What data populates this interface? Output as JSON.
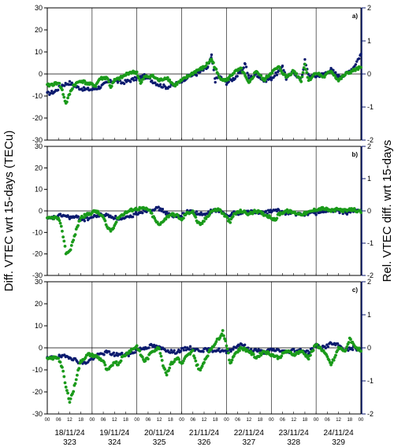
{
  "chart_data": {
    "type": "scatter",
    "ylabel_left": "Diff. VTEC wrt 15-days (TECu)",
    "ylabel_right": "Rel. VTEC diff. wrt 15-days",
    "xlim_hours": [
      0,
      168
    ],
    "ylim_left": [
      -30,
      30
    ],
    "ylim_right": [
      -2,
      2
    ],
    "yticks_left": [
      -30,
      -20,
      -10,
      0,
      10,
      20,
      30
    ],
    "yticks_right": [
      -2,
      -1,
      0,
      1,
      2
    ],
    "hour_ticks": [
      "00",
      "06",
      "12",
      "18",
      "00",
      "06",
      "12",
      "18",
      "00",
      "06",
      "12",
      "18",
      "00",
      "06",
      "12",
      "18",
      "00",
      "06",
      "12",
      "18",
      "00",
      "06",
      "12",
      "18",
      "00",
      "06",
      "12",
      "18",
      "00"
    ],
    "dates": [
      "18/11/24",
      "19/11/24",
      "20/11/24",
      "21/11/24",
      "22/11/24",
      "23/11/24",
      "24/11/24"
    ],
    "doys": [
      "323",
      "324",
      "325",
      "326",
      "327",
      "328",
      "329"
    ],
    "colors": {
      "left_series": "#0b1a6e",
      "right_series": "#1a9a1a",
      "right_axis": "#0b1a6e"
    },
    "series_style": [
      "left axis (TECu), navy",
      "right axis (relative), green"
    ],
    "panels": [
      {
        "label": "a)",
        "navy": [
          [
            0,
            -9
          ],
          [
            4,
            -8
          ],
          [
            8,
            -5
          ],
          [
            12,
            -4
          ],
          [
            16,
            -6
          ],
          [
            20,
            -7
          ],
          [
            24,
            -7
          ],
          [
            28,
            -6
          ],
          [
            32,
            -4
          ],
          [
            36,
            -3
          ],
          [
            40,
            -4
          ],
          [
            44,
            -3
          ],
          [
            48,
            -2
          ],
          [
            52,
            -1
          ],
          [
            56,
            -3
          ],
          [
            60,
            -5
          ],
          [
            64,
            -6
          ],
          [
            68,
            -5
          ],
          [
            72,
            -3
          ],
          [
            76,
            -1
          ],
          [
            80,
            0
          ],
          [
            84,
            2
          ],
          [
            86,
            3
          ],
          [
            88,
            8
          ],
          [
            90,
            -3
          ],
          [
            92,
            -1
          ],
          [
            96,
            -4
          ],
          [
            100,
            -2
          ],
          [
            104,
            1
          ],
          [
            106,
            5
          ],
          [
            108,
            -2
          ],
          [
            112,
            0
          ],
          [
            116,
            -3
          ],
          [
            120,
            -2
          ],
          [
            124,
            1
          ],
          [
            126,
            4
          ],
          [
            128,
            -2
          ],
          [
            132,
            1
          ],
          [
            136,
            -3
          ],
          [
            138,
            6
          ],
          [
            140,
            -1
          ],
          [
            144,
            -1
          ],
          [
            148,
            0
          ],
          [
            152,
            2
          ],
          [
            156,
            -1
          ],
          [
            160,
            0
          ],
          [
            164,
            3
          ],
          [
            168,
            9
          ]
        ],
        "green": [
          [
            0,
            -0.35
          ],
          [
            4,
            -0.3
          ],
          [
            6,
            -0.25
          ],
          [
            8,
            -0.5
          ],
          [
            10,
            -0.9
          ],
          [
            12,
            -0.6
          ],
          [
            14,
            -0.35
          ],
          [
            18,
            -0.2
          ],
          [
            22,
            -0.3
          ],
          [
            26,
            -0.35
          ],
          [
            28,
            -0.15
          ],
          [
            32,
            -0.1
          ],
          [
            34,
            -0.4
          ],
          [
            36,
            -0.2
          ],
          [
            40,
            -0.1
          ],
          [
            44,
            0.05
          ],
          [
            48,
            0.05
          ],
          [
            50,
            -0.3
          ],
          [
            52,
            -0.1
          ],
          [
            56,
            -0.05
          ],
          [
            60,
            -0.2
          ],
          [
            64,
            -0.1
          ],
          [
            68,
            -0.35
          ],
          [
            72,
            -0.2
          ],
          [
            76,
            -0.05
          ],
          [
            80,
            0.1
          ],
          [
            84,
            0.2
          ],
          [
            88,
            0.45
          ],
          [
            92,
            -0.1
          ],
          [
            96,
            -0.2
          ],
          [
            100,
            0.05
          ],
          [
            104,
            0.15
          ],
          [
            108,
            -0.3
          ],
          [
            112,
            0.1
          ],
          [
            116,
            -0.2
          ],
          [
            120,
            0.05
          ],
          [
            124,
            0.2
          ],
          [
            128,
            -0.1
          ],
          [
            132,
            0.1
          ],
          [
            136,
            -0.2
          ],
          [
            138,
            0.3
          ],
          [
            140,
            -0.2
          ],
          [
            144,
            0.05
          ],
          [
            148,
            -0.1
          ],
          [
            152,
            0.1
          ],
          [
            156,
            -0.2
          ],
          [
            160,
            0
          ],
          [
            164,
            0.1
          ],
          [
            168,
            0.2
          ]
        ]
      },
      {
        "label": "b)",
        "navy": [
          [
            0,
            -4
          ],
          [
            4,
            -3
          ],
          [
            8,
            -2
          ],
          [
            12,
            -3
          ],
          [
            16,
            -3
          ],
          [
            20,
            -4
          ],
          [
            24,
            -3
          ],
          [
            28,
            -2
          ],
          [
            32,
            -2
          ],
          [
            36,
            -3
          ],
          [
            40,
            -4
          ],
          [
            44,
            -3
          ],
          [
            48,
            -1
          ],
          [
            52,
            0
          ],
          [
            56,
            1
          ],
          [
            60,
            1
          ],
          [
            64,
            -1
          ],
          [
            68,
            -3
          ],
          [
            72,
            -2
          ],
          [
            76,
            0
          ],
          [
            80,
            -1
          ],
          [
            84,
            -2
          ],
          [
            88,
            0
          ],
          [
            92,
            0
          ],
          [
            96,
            -2
          ],
          [
            100,
            -1
          ],
          [
            104,
            -1
          ],
          [
            108,
            0
          ],
          [
            112,
            -1
          ],
          [
            116,
            -1
          ],
          [
            120,
            0
          ],
          [
            124,
            0
          ],
          [
            128,
            -1
          ],
          [
            132,
            -1
          ],
          [
            136,
            -2
          ],
          [
            140,
            -1
          ],
          [
            144,
            -1
          ],
          [
            148,
            0
          ],
          [
            152,
            0
          ],
          [
            156,
            0
          ],
          [
            160,
            -1
          ],
          [
            164,
            0
          ],
          [
            168,
            0
          ]
        ],
        "green": [
          [
            0,
            -0.25
          ],
          [
            4,
            -0.2
          ],
          [
            6,
            -0.25
          ],
          [
            8,
            -0.6
          ],
          [
            10,
            -1.3
          ],
          [
            12,
            -1.25
          ],
          [
            14,
            -0.9
          ],
          [
            16,
            -0.5
          ],
          [
            18,
            -0.2
          ],
          [
            22,
            -0.1
          ],
          [
            26,
            0
          ],
          [
            30,
            -0.2
          ],
          [
            32,
            -0.5
          ],
          [
            34,
            -0.6
          ],
          [
            36,
            -0.45
          ],
          [
            38,
            -0.2
          ],
          [
            42,
            -0.05
          ],
          [
            46,
            0.05
          ],
          [
            50,
            0.08
          ],
          [
            54,
            0.05
          ],
          [
            56,
            -0.1
          ],
          [
            58,
            -0.3
          ],
          [
            60,
            -0.45
          ],
          [
            62,
            -0.3
          ],
          [
            66,
            -0.1
          ],
          [
            70,
            -0.15
          ],
          [
            72,
            -0.3
          ],
          [
            74,
            -0.1
          ],
          [
            78,
            0
          ],
          [
            80,
            -0.3
          ],
          [
            82,
            -0.45
          ],
          [
            84,
            -0.3
          ],
          [
            88,
            0
          ],
          [
            92,
            0.05
          ],
          [
            96,
            -0.2
          ],
          [
            98,
            -0.35
          ],
          [
            100,
            -0.1
          ],
          [
            104,
            0
          ],
          [
            108,
            -0.1
          ],
          [
            112,
            0
          ],
          [
            116,
            -0.1
          ],
          [
            120,
            -0.2
          ],
          [
            122,
            -0.3
          ],
          [
            124,
            -0.1
          ],
          [
            128,
            0
          ],
          [
            132,
            -0.05
          ],
          [
            136,
            -0.1
          ],
          [
            140,
            -0.05
          ],
          [
            144,
            0.05
          ],
          [
            148,
            0.08
          ],
          [
            152,
            0
          ],
          [
            156,
            0.05
          ],
          [
            160,
            0
          ],
          [
            164,
            0.05
          ],
          [
            168,
            -0.05
          ]
        ]
      },
      {
        "label": "c)",
        "navy": [
          [
            0,
            -5
          ],
          [
            4,
            -4
          ],
          [
            8,
            -4
          ],
          [
            12,
            -4
          ],
          [
            16,
            -6
          ],
          [
            20,
            -7
          ],
          [
            24,
            -5
          ],
          [
            28,
            -3
          ],
          [
            32,
            -2
          ],
          [
            36,
            -3
          ],
          [
            40,
            -3
          ],
          [
            44,
            -3
          ],
          [
            48,
            -1
          ],
          [
            52,
            0
          ],
          [
            56,
            1
          ],
          [
            60,
            0
          ],
          [
            64,
            -1
          ],
          [
            68,
            -2
          ],
          [
            72,
            -1
          ],
          [
            76,
            0
          ],
          [
            80,
            -1
          ],
          [
            84,
            -1
          ],
          [
            88,
            -1
          ],
          [
            92,
            -1
          ],
          [
            96,
            -2
          ],
          [
            100,
            0
          ],
          [
            104,
            2
          ],
          [
            108,
            -1
          ],
          [
            112,
            -1
          ],
          [
            116,
            -2
          ],
          [
            120,
            -1
          ],
          [
            124,
            -1
          ],
          [
            128,
            -2
          ],
          [
            132,
            -1
          ],
          [
            136,
            -1
          ],
          [
            140,
            -2
          ],
          [
            144,
            1
          ],
          [
            148,
            0
          ],
          [
            152,
            2
          ],
          [
            156,
            1
          ],
          [
            160,
            -1
          ],
          [
            164,
            0
          ],
          [
            168,
            -1
          ]
        ],
        "green": [
          [
            0,
            -0.35
          ],
          [
            4,
            -0.3
          ],
          [
            6,
            -0.3
          ],
          [
            8,
            -0.6
          ],
          [
            10,
            -1.2
          ],
          [
            12,
            -1.6
          ],
          [
            14,
            -1.3
          ],
          [
            16,
            -0.8
          ],
          [
            18,
            -0.4
          ],
          [
            22,
            -0.2
          ],
          [
            26,
            -0.25
          ],
          [
            30,
            -0.4
          ],
          [
            32,
            -0.7
          ],
          [
            34,
            -0.6
          ],
          [
            36,
            -0.4
          ],
          [
            38,
            -0.5
          ],
          [
            40,
            -0.3
          ],
          [
            44,
            -0.1
          ],
          [
            48,
            0.05
          ],
          [
            50,
            -0.2
          ],
          [
            52,
            -0.4
          ],
          [
            54,
            -0.3
          ],
          [
            56,
            -0.1
          ],
          [
            60,
            0
          ],
          [
            62,
            -0.5
          ],
          [
            64,
            -0.8
          ],
          [
            66,
            -0.5
          ],
          [
            70,
            -0.3
          ],
          [
            72,
            -0.5
          ],
          [
            74,
            -0.3
          ],
          [
            78,
            -0.1
          ],
          [
            80,
            -0.5
          ],
          [
            82,
            -0.7
          ],
          [
            84,
            -0.4
          ],
          [
            88,
            0
          ],
          [
            92,
            0.3
          ],
          [
            94,
            0.5
          ],
          [
            96,
            0.1
          ],
          [
            98,
            -0.5
          ],
          [
            100,
            -0.2
          ],
          [
            104,
            0
          ],
          [
            108,
            -0.1
          ],
          [
            112,
            -0.3
          ],
          [
            116,
            -0.1
          ],
          [
            120,
            -0.2
          ],
          [
            124,
            -0.3
          ],
          [
            128,
            -0.1
          ],
          [
            132,
            -0.2
          ],
          [
            136,
            -0.1
          ],
          [
            140,
            -0.3
          ],
          [
            144,
            0.1
          ],
          [
            148,
            -0.1
          ],
          [
            152,
            -0.5
          ],
          [
            154,
            -0.3
          ],
          [
            156,
            0
          ],
          [
            160,
            -0.1
          ],
          [
            162,
            0.3
          ],
          [
            164,
            0.1
          ],
          [
            168,
            -0.1
          ]
        ]
      }
    ]
  }
}
